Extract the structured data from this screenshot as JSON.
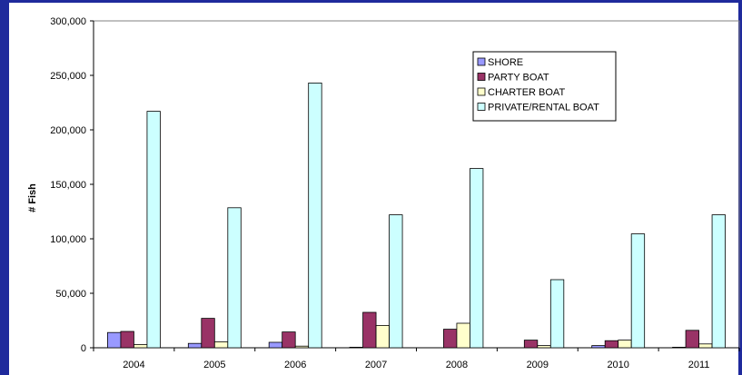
{
  "chart_data": {
    "type": "bar",
    "title": "",
    "xlabel": "",
    "ylabel": "# Fish",
    "ylim": [
      0,
      300000
    ],
    "yticks": [
      0,
      50000,
      100000,
      150000,
      200000,
      250000,
      300000
    ],
    "ytick_labels": [
      "0",
      "50,000",
      "100,000",
      "150,000",
      "200,000",
      "250,000",
      "300,000"
    ],
    "categories": [
      "2004",
      "2005",
      "2006",
      "2007",
      "2008",
      "2009",
      "2010",
      "2011"
    ],
    "series": [
      {
        "name": "SHORE",
        "color": "#9999ff",
        "values": [
          14000,
          4000,
          5000,
          500,
          0,
          0,
          2000,
          500
        ]
      },
      {
        "name": "PARTY BOAT",
        "color": "#993366",
        "values": [
          15000,
          27000,
          14500,
          32500,
          17000,
          7000,
          6500,
          16000
        ]
      },
      {
        "name": "CHARTER BOAT",
        "color": "#ffffcc",
        "values": [
          3000,
          5500,
          1500,
          20500,
          22500,
          2000,
          7000,
          3500
        ]
      },
      {
        "name": "PRIVATE/RENTAL BOAT",
        "color": "#ccffff",
        "values": [
          217000,
          128500,
          243000,
          122000,
          164500,
          62500,
          104500,
          122000
        ]
      }
    ],
    "legend_position": "top-right",
    "grid": false
  }
}
